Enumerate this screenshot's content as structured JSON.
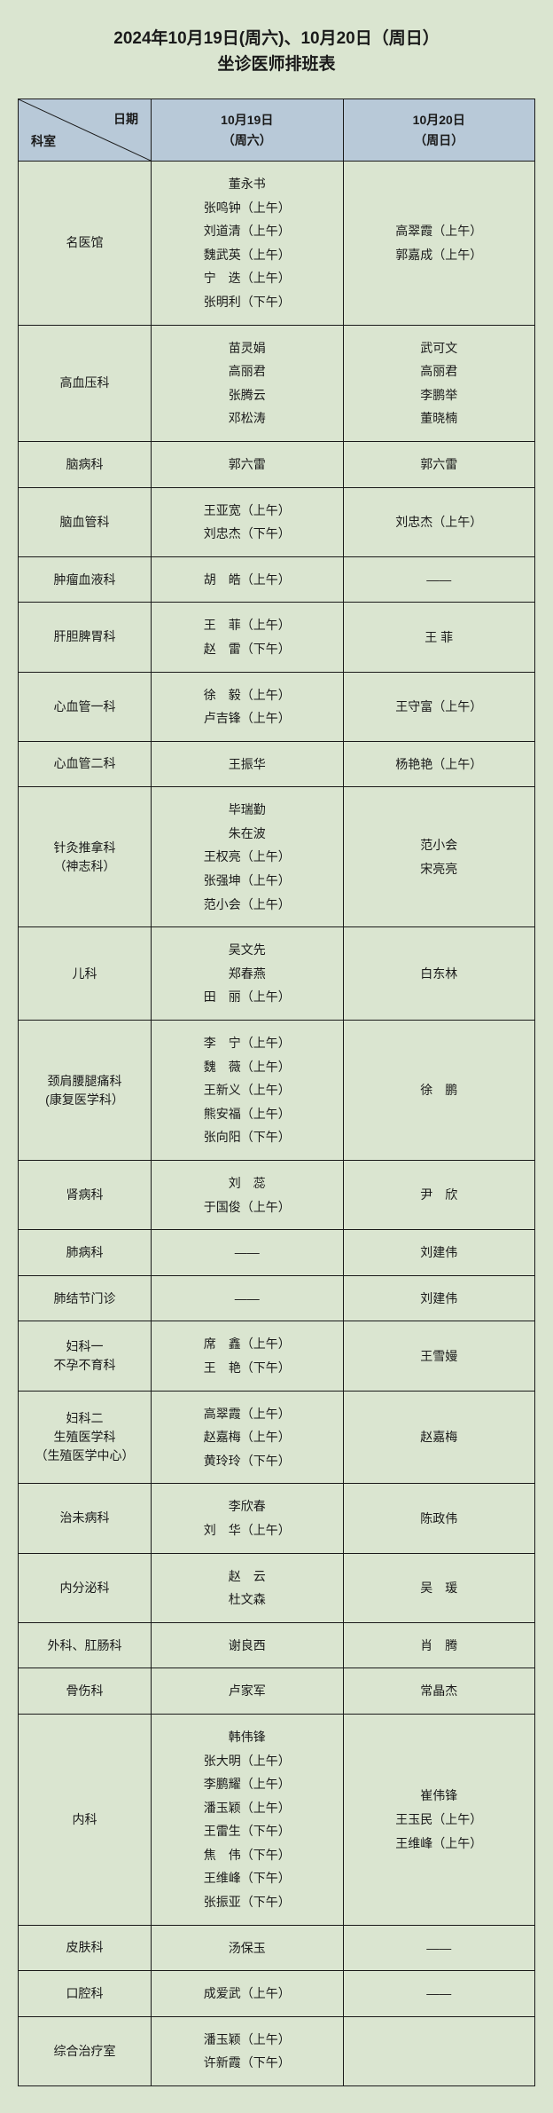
{
  "title_line1": "2024年10月19日(周六)、10月20日（周日）",
  "title_line2": "坐诊医师排班表",
  "header": {
    "corner_top": "日期",
    "corner_bottom": "科室",
    "col1_l1": "10月19日",
    "col1_l2": "（周六）",
    "col2_l1": "10月20日",
    "col2_l2": "（周日）"
  },
  "rows": [
    {
      "dept": "名医馆",
      "sat": [
        "董永书",
        "张鸣钟（上午）",
        "刘道清（上午）",
        "魏武英（上午）",
        "宁　迭（上午）",
        "张明利（下午）"
      ],
      "sun": [
        "高翠霞（上午）",
        "郭嘉成（上午）"
      ]
    },
    {
      "dept": "高血压科",
      "sat": [
        "苗灵娟",
        "高丽君",
        "张腾云",
        "邓松涛"
      ],
      "sun": [
        "武可文",
        "高丽君",
        "李鹏举",
        "董晓楠"
      ]
    },
    {
      "dept": "脑病科",
      "sat": [
        "郭六雷"
      ],
      "sun": [
        "郭六雷"
      ]
    },
    {
      "dept": "脑血管科",
      "sat": [
        "王亚宽（上午）",
        "刘忠杰（下午）"
      ],
      "sun": [
        "刘忠杰（上午）"
      ]
    },
    {
      "dept": "肿瘤血液科",
      "sat": [
        "胡　皓（上午）"
      ],
      "sun": [
        "——"
      ]
    },
    {
      "dept": "肝胆脾胃科",
      "sat": [
        "王　菲（上午）",
        "赵　雷（下午）"
      ],
      "sun": [
        "王 菲"
      ]
    },
    {
      "dept": "心血管一科",
      "sat": [
        "徐　毅（上午）",
        "卢吉锋（上午）"
      ],
      "sun": [
        "王守富（上午）"
      ]
    },
    {
      "dept": "心血管二科",
      "sat": [
        "王振华"
      ],
      "sun": [
        "杨艳艳（上午）"
      ]
    },
    {
      "dept": "针灸推拿科\n（神志科）",
      "sat": [
        "毕瑞勤",
        "朱在波",
        "王权亮（上午）",
        "张强坤（上午）",
        "范小会（上午）"
      ],
      "sun": [
        "范小会",
        "宋亮亮"
      ]
    },
    {
      "dept": "儿科",
      "sat": [
        "吴文先",
        "郑春燕",
        "田　丽（上午）"
      ],
      "sun": [
        "白东林"
      ]
    },
    {
      "dept": "颈肩腰腿痛科\n(康复医学科）",
      "sat": [
        "李　宁（上午）",
        "魏　薇（上午）",
        "王新义（上午）",
        "熊安福（上午）",
        "张向阳（下午）"
      ],
      "sun": [
        "徐　鹏"
      ]
    },
    {
      "dept": "肾病科",
      "sat": [
        "刘　蕊",
        "于国俊（上午）"
      ],
      "sun": [
        "尹　欣"
      ]
    },
    {
      "dept": "肺病科",
      "sat": [
        "——"
      ],
      "sun": [
        "刘建伟"
      ]
    },
    {
      "dept": "肺结节门诊",
      "sat": [
        "——"
      ],
      "sun": [
        "刘建伟"
      ]
    },
    {
      "dept": "妇科一\n不孕不育科",
      "sat": [
        "席　鑫（上午）",
        "王　艳（下午）"
      ],
      "sun": [
        "王雪嫚"
      ]
    },
    {
      "dept": "妇科二\n生殖医学科\n（生殖医学中心）",
      "sat": [
        "高翠霞（上午）",
        "赵嘉梅（上午）",
        "黄玲玲（下午）"
      ],
      "sun": [
        "赵嘉梅"
      ]
    },
    {
      "dept": "治未病科",
      "sat": [
        "李欣春",
        "刘　华（上午）"
      ],
      "sun": [
        "陈政伟"
      ]
    },
    {
      "dept": "内分泌科",
      "sat": [
        "赵　云",
        "杜文森"
      ],
      "sun": [
        "吴　瑗"
      ]
    },
    {
      "dept": "外科、肛肠科",
      "sat": [
        "谢良西"
      ],
      "sun": [
        "肖　腾"
      ]
    },
    {
      "dept": "骨伤科",
      "sat": [
        "卢家军"
      ],
      "sun": [
        "常晶杰"
      ]
    },
    {
      "dept": "内科",
      "sat": [
        "韩伟锋",
        "张大明（上午）",
        "李鹏耀（上午）",
        "潘玉颖（上午）",
        "王雷生（下午）",
        "焦　伟（下午）",
        "王维峰（下午）",
        "张振亚（下午）"
      ],
      "sun": [
        "崔伟锋",
        "王玉民（上午）",
        "王维峰（上午）"
      ]
    },
    {
      "dept": "皮肤科",
      "sat": [
        "汤保玉"
      ],
      "sun": [
        "——"
      ]
    },
    {
      "dept": "口腔科",
      "sat": [
        "成爱武（上午）"
      ],
      "sun": [
        "——"
      ]
    },
    {
      "dept": "综合治疗室",
      "sat": [
        "潘玉颖（上午）",
        "许新霞（下午）"
      ],
      "sun": []
    }
  ]
}
